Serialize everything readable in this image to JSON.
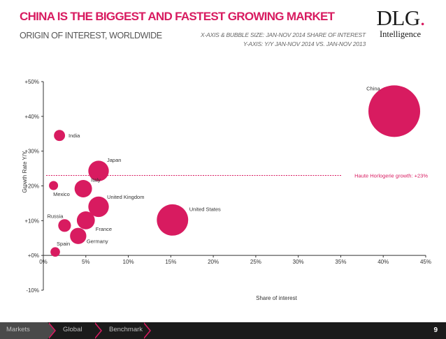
{
  "header": {
    "title": "CHINA IS THE BIGGEST AND FASTEST GROWING MARKET",
    "subtitle": "ORIGIN OF INTEREST, WORLDWIDE",
    "note_line1": "X-AXIS & BUBBLE SIZE: JAN-NOV 2014 SHARE OF INTEREST",
    "note_line2": "Y-AXIS: Y/Y JAN-NOV 2014 VS. JAN-NOV 2013"
  },
  "logo": {
    "main": "DLG",
    "dot": ".",
    "sub": "Intelligence"
  },
  "colors": {
    "accent": "#d81b60",
    "axis": "#333333",
    "text": "#333333",
    "footer_bg": "#1b1b1b"
  },
  "chart_data": {
    "type": "scatter",
    "subtype": "bubble",
    "xlabel": "Share of interest",
    "ylabel": "Growth Rate Y/Y",
    "xlim": [
      0,
      45
    ],
    "ylim": [
      -10,
      50
    ],
    "x_ticks": [
      0,
      5,
      10,
      15,
      20,
      25,
      30,
      35,
      40,
      45
    ],
    "x_tick_labels": [
      "0%",
      "5%",
      "10%",
      "15%",
      "20%",
      "25%",
      "30%",
      "35%",
      "40%",
      "45%"
    ],
    "y_ticks": [
      -10,
      0,
      10,
      20,
      30,
      40,
      50
    ],
    "y_tick_labels": [
      "-10%",
      "+0%",
      "+10%",
      "+20%",
      "+30%",
      "+40%",
      "+50%"
    ],
    "grid": false,
    "points": [
      {
        "label": "China",
        "x": 41.3,
        "y": 41.5,
        "size": 41.3,
        "label_pos": "upper-left"
      },
      {
        "label": "India",
        "x": 1.9,
        "y": 34.5,
        "size": 1.9,
        "label_pos": "right"
      },
      {
        "label": "Japan",
        "x": 6.5,
        "y": 24.3,
        "size": 6.5,
        "label_pos": "upper-right"
      },
      {
        "label": "Mexico",
        "x": 1.2,
        "y": 20.1,
        "size": 1.2,
        "label_pos": "lower-right"
      },
      {
        "label": "Italy",
        "x": 4.7,
        "y": 19.2,
        "size": 4.7,
        "label_pos": "upper-right"
      },
      {
        "label": "United Kingdom",
        "x": 6.5,
        "y": 14.0,
        "size": 6.5,
        "label_pos": "upper-right"
      },
      {
        "label": "United States",
        "x": 15.2,
        "y": 10.2,
        "size": 15.2,
        "label_pos": "upper-right"
      },
      {
        "label": "Russia",
        "x": 2.5,
        "y": 8.6,
        "size": 2.5,
        "label_pos": "upper-left"
      },
      {
        "label": "France",
        "x": 5.0,
        "y": 10.1,
        "size": 5.0,
        "label_pos": "lower-right"
      },
      {
        "label": "Germany",
        "x": 4.1,
        "y": 5.6,
        "size": 4.1,
        "label_pos": "lower-right"
      },
      {
        "label": "Spain",
        "x": 1.4,
        "y": 1.0,
        "size": 1.4,
        "label_pos": "upper-right"
      }
    ],
    "reference_line": {
      "y": 23,
      "label": "Haute Horlogerie growth: +23%",
      "style": "dashed"
    }
  },
  "footer": {
    "crumbs": [
      "Markets",
      "Global",
      "Benchmark"
    ],
    "page_number": "9"
  }
}
